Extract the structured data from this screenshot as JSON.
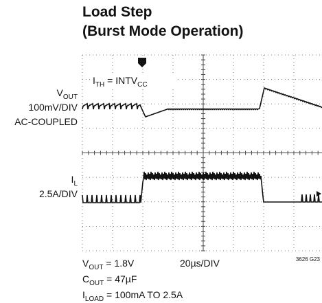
{
  "title": [
    "Load Step",
    "(Burst Mode Operation)"
  ],
  "left_labels": {
    "vout": {
      "main": "V",
      "sub": "OUT"
    },
    "vout_scale": "100mV/DIV",
    "vout_coupling": "AC-COUPLED",
    "il": {
      "main": "I",
      "sub": "L"
    },
    "il_scale": "2.5A/DIV"
  },
  "screen_note": {
    "main": "I",
    "sub": "TH",
    "mid": " = INTV",
    "sub2": "CC"
  },
  "footer": {
    "vout": {
      "main": "V",
      "sub": "OUT",
      "rest": " = 1.8V"
    },
    "timebase": "20µs/DIV",
    "cout": {
      "main": "C",
      "sub": "OUT",
      "rest": " = 47µF"
    },
    "iload": {
      "main": "I",
      "sub": "LOAD",
      "rest": " = 100mA TO 2.5A"
    },
    "figure_id": "3626 G23"
  }
}
